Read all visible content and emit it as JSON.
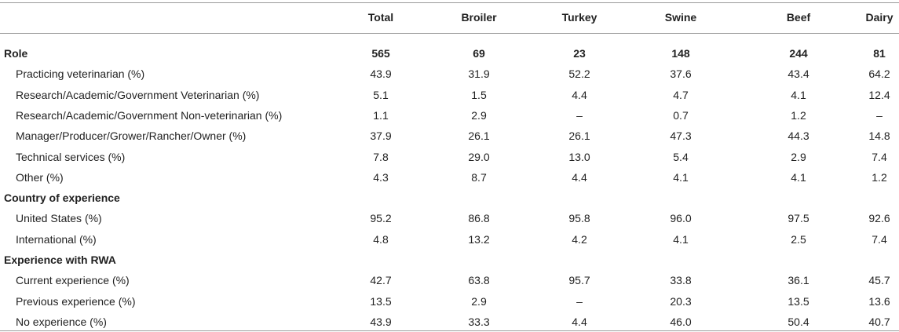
{
  "table": {
    "columns": [
      "Total",
      "Broiler",
      "Turkey",
      "Swine",
      "Beef",
      "Dairy"
    ],
    "sections": [
      {
        "title": "Role",
        "values": [
          "565",
          "69",
          "23",
          "148",
          "244",
          "81"
        ],
        "rows": [
          {
            "label": "Practicing veterinarian (%)",
            "values": [
              "43.9",
              "31.9",
              "52.2",
              "37.6",
              "43.4",
              "64.2"
            ]
          },
          {
            "label": "Research/Academic/Government Veterinarian (%)",
            "values": [
              "5.1",
              "1.5",
              "4.4",
              "4.7",
              "4.1",
              "12.4"
            ]
          },
          {
            "label": "Research/Academic/Government Non-veterinarian (%)",
            "values": [
              "1.1",
              "2.9",
              "–",
              "0.7",
              "1.2",
              "–"
            ]
          },
          {
            "label": "Manager/Producer/Grower/Rancher/Owner (%)",
            "values": [
              "37.9",
              "26.1",
              "26.1",
              "47.3",
              "44.3",
              "14.8"
            ]
          },
          {
            "label": "Technical services (%)",
            "values": [
              "7.8",
              "29.0",
              "13.0",
              "5.4",
              "2.9",
              "7.4"
            ]
          },
          {
            "label": "Other (%)",
            "values": [
              "4.3",
              "8.7",
              "4.4",
              "4.1",
              "4.1",
              "1.2"
            ]
          }
        ]
      },
      {
        "title": "Country of experience",
        "rows": [
          {
            "label": "United States (%)",
            "values": [
              "95.2",
              "86.8",
              "95.8",
              "96.0",
              "97.5",
              "92.6"
            ]
          },
          {
            "label": "International (%)",
            "values": [
              "4.8",
              "13.2",
              "4.2",
              "4.1",
              "2.5",
              "7.4"
            ]
          }
        ]
      },
      {
        "title": "Experience with RWA",
        "rows": [
          {
            "label": "Current experience (%)",
            "values": [
              "42.7",
              "63.8",
              "95.7",
              "33.8",
              "36.1",
              "45.7"
            ]
          },
          {
            "label": "Previous experience (%)",
            "values": [
              "13.5",
              "2.9",
              "–",
              "20.3",
              "13.5",
              "13.6"
            ]
          },
          {
            "label": "No experience (%)",
            "values": [
              "43.9",
              "33.3",
              "4.4",
              "46.0",
              "50.4",
              "40.7"
            ]
          }
        ]
      }
    ]
  }
}
